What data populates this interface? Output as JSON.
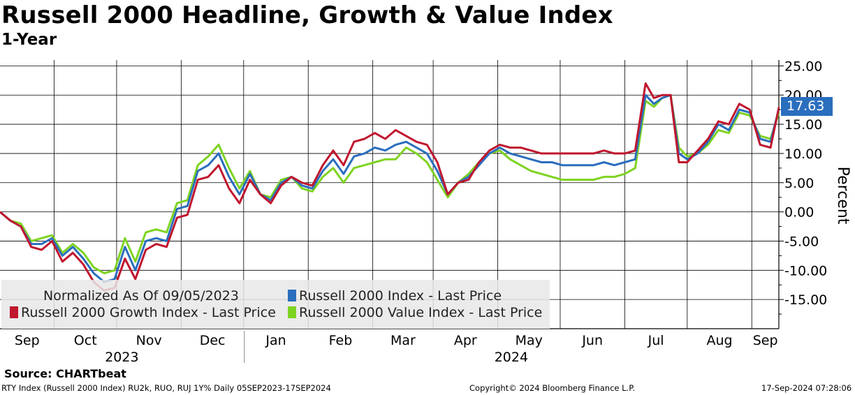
{
  "title": "Russell 2000 Headline, Growth & Value Index",
  "subtitle": "1-Year",
  "source": "Source: CHARTbeat",
  "footer": {
    "left": "RTY Index (Russell 2000 Index) RU2k, RUO, RUJ 1Y%  Daily 05SEP2023-17SEP2024",
    "center": "Copyright© 2024 Bloomberg Finance L.P.",
    "right": "17-Sep-2024 07:28:06"
  },
  "legend": {
    "note": "Normalized As Of 09/05/2023",
    "entries": [
      {
        "label": "Russell 2000 Index - Last Price",
        "color": "#2a6ebe"
      },
      {
        "label": "Russell 2000 Growth Index - Last Price",
        "color": "#c0162e"
      },
      {
        "label": "Russell 2000 Value Index - Last Price",
        "color": "#7ed321"
      }
    ]
  },
  "last_value_label": "17.63",
  "chart_data": {
    "type": "line",
    "title": "Russell 2000 Headline, Growth & Value Index",
    "ylabel": "Percent",
    "ylim": [
      -20,
      26
    ],
    "yticks": [
      25,
      20,
      15,
      10,
      5,
      0,
      -5,
      -10,
      -15
    ],
    "ytick_labels": [
      "25.00",
      "20.00",
      "15.00",
      "10.00",
      "5.00",
      "0.00",
      "-5.00",
      "-10.00",
      "-15.00"
    ],
    "month_labels": [
      "Sep",
      "Oct",
      "Nov",
      "Dec",
      "Jan",
      "Feb",
      "Mar",
      "Apr",
      "May",
      "Jun",
      "Jul",
      "Aug",
      "Sep"
    ],
    "year_labels": [
      "2023",
      "2024"
    ],
    "x_start": "2023-09-05",
    "x_end": "2024-09-17",
    "month_boundaries_days": [
      26,
      56,
      87,
      117,
      148,
      179,
      208,
      239,
      269,
      300,
      330,
      361
    ],
    "year_boundary_day": 117,
    "series": [
      {
        "name": "Russell 2000 Index - Last Price",
        "color": "#2a6ebe",
        "x_days": [
          0,
          5,
          10,
          15,
          20,
          25,
          30,
          35,
          40,
          45,
          50,
          55,
          60,
          65,
          70,
          75,
          80,
          85,
          90,
          95,
          100,
          105,
          110,
          115,
          120,
          125,
          130,
          135,
          140,
          145,
          150,
          155,
          160,
          165,
          170,
          175,
          180,
          185,
          190,
          195,
          200,
          205,
          210,
          215,
          220,
          225,
          230,
          235,
          240,
          245,
          250,
          255,
          260,
          265,
          270,
          275,
          280,
          285,
          290,
          295,
          300,
          305,
          310,
          314,
          318,
          322,
          326,
          330,
          335,
          340,
          345,
          350,
          355,
          360,
          365,
          370,
          374
        ],
        "values": [
          0.0,
          -1.5,
          -2.5,
          -5.5,
          -5.5,
          -4.5,
          -7.5,
          -6.0,
          -8.0,
          -10.5,
          -12.0,
          -11.5,
          -6.0,
          -10.0,
          -5.0,
          -4.5,
          -5.0,
          0.5,
          1.0,
          7.0,
          8.0,
          10.0,
          6.0,
          3.0,
          6.5,
          3.0,
          2.0,
          5.0,
          6.0,
          4.5,
          4.0,
          7.0,
          9.0,
          6.5,
          9.5,
          10.0,
          11.0,
          10.5,
          11.5,
          12.0,
          11.0,
          10.0,
          7.0,
          3.0,
          5.0,
          6.0,
          8.0,
          10.0,
          11.0,
          10.0,
          9.5,
          9.0,
          8.5,
          8.5,
          8.0,
          8.0,
          8.0,
          8.0,
          8.5,
          8.0,
          8.5,
          9.0,
          20.0,
          18.5,
          19.5,
          20.0,
          10.0,
          9.0,
          10.0,
          12.0,
          15.0,
          14.0,
          17.5,
          17.0,
          12.5,
          12.0,
          17.63
        ]
      },
      {
        "name": "Russell 2000 Growth Index - Last Price",
        "color": "#c0162e",
        "x_days": [
          0,
          5,
          10,
          15,
          20,
          25,
          30,
          35,
          40,
          45,
          50,
          55,
          60,
          65,
          70,
          75,
          80,
          85,
          90,
          95,
          100,
          105,
          110,
          115,
          120,
          125,
          130,
          135,
          140,
          145,
          150,
          155,
          160,
          165,
          170,
          175,
          180,
          185,
          190,
          195,
          200,
          205,
          210,
          215,
          220,
          225,
          230,
          235,
          240,
          245,
          250,
          255,
          260,
          265,
          270,
          275,
          280,
          285,
          290,
          295,
          300,
          305,
          310,
          314,
          318,
          322,
          326,
          330,
          335,
          340,
          345,
          350,
          355,
          360,
          365,
          370,
          374
        ],
        "values": [
          0.0,
          -1.5,
          -2.5,
          -6.0,
          -6.5,
          -5.0,
          -8.5,
          -7.0,
          -9.0,
          -12.0,
          -13.5,
          -13.0,
          -8.0,
          -11.5,
          -6.5,
          -5.5,
          -6.0,
          -1.0,
          -0.5,
          5.5,
          6.0,
          8.0,
          4.0,
          1.5,
          5.5,
          3.0,
          1.5,
          4.5,
          6.0,
          5.0,
          4.5,
          8.0,
          10.5,
          8.0,
          12.0,
          12.5,
          13.5,
          12.5,
          14.0,
          13.0,
          12.0,
          11.5,
          8.5,
          3.0,
          5.0,
          5.5,
          8.5,
          10.5,
          11.5,
          11.0,
          11.0,
          10.5,
          10.0,
          10.0,
          10.0,
          10.0,
          10.0,
          10.0,
          10.5,
          10.0,
          10.0,
          10.5,
          22.0,
          19.5,
          20.0,
          20.0,
          8.5,
          8.5,
          10.5,
          12.5,
          15.5,
          15.0,
          18.5,
          17.5,
          11.5,
          11.0,
          17.9
        ]
      },
      {
        "name": "Russell 2000 Value Index - Last Price",
        "color": "#7ed321",
        "x_days": [
          0,
          5,
          10,
          15,
          20,
          25,
          30,
          35,
          40,
          45,
          50,
          55,
          60,
          65,
          70,
          75,
          80,
          85,
          90,
          95,
          100,
          105,
          110,
          115,
          120,
          125,
          130,
          135,
          140,
          145,
          150,
          155,
          160,
          165,
          170,
          175,
          180,
          185,
          190,
          195,
          200,
          205,
          210,
          215,
          220,
          225,
          230,
          235,
          240,
          245,
          250,
          255,
          260,
          265,
          270,
          275,
          280,
          285,
          290,
          295,
          300,
          305,
          310,
          314,
          318,
          322,
          326,
          330,
          335,
          340,
          345,
          350,
          355,
          360,
          365,
          370,
          374
        ],
        "values": [
          0.0,
          -1.5,
          -2.0,
          -5.0,
          -4.5,
          -4.0,
          -7.0,
          -5.5,
          -7.0,
          -9.5,
          -10.5,
          -10.0,
          -4.5,
          -8.5,
          -3.5,
          -3.0,
          -3.5,
          1.5,
          2.0,
          8.0,
          9.5,
          11.5,
          7.5,
          4.0,
          7.0,
          3.0,
          2.5,
          5.5,
          6.0,
          4.0,
          3.5,
          6.0,
          7.5,
          5.0,
          7.5,
          8.0,
          8.5,
          9.0,
          9.0,
          11.0,
          10.0,
          8.5,
          5.5,
          2.5,
          5.0,
          6.5,
          8.5,
          10.0,
          10.5,
          9.0,
          8.0,
          7.0,
          6.5,
          6.0,
          5.5,
          5.5,
          5.5,
          5.5,
          6.0,
          6.0,
          6.5,
          7.5,
          19.0,
          18.0,
          19.5,
          20.0,
          11.0,
          9.5,
          10.0,
          11.5,
          14.0,
          13.5,
          17.0,
          16.5,
          13.0,
          12.5,
          17.0
        ]
      }
    ]
  }
}
